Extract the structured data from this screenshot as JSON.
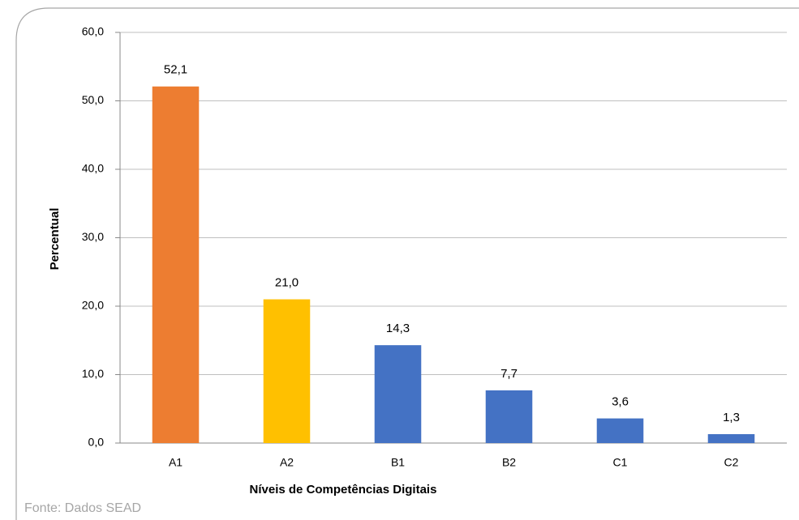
{
  "chart_data": {
    "type": "bar",
    "categories": [
      "A1",
      "A2",
      "B1",
      "B2",
      "C1",
      "C2"
    ],
    "values": [
      52.1,
      21.0,
      14.3,
      7.7,
      3.6,
      1.3
    ],
    "value_labels": [
      "52,1",
      "21,0",
      "14,3",
      "7,7",
      "3,6",
      "1,3"
    ],
    "colors": [
      "#ed7d31",
      "#ffc000",
      "#4472c4",
      "#4472c4",
      "#4472c4",
      "#4472c4"
    ],
    "ylim": [
      0,
      60
    ],
    "yticks": [
      {
        "value": 0,
        "label": "0,0"
      },
      {
        "value": 10,
        "label": "10,0"
      },
      {
        "value": 20,
        "label": "20,0"
      },
      {
        "value": 30,
        "label": "30,0"
      },
      {
        "value": 40,
        "label": "40,0"
      },
      {
        "value": 50,
        "label": "50,0"
      },
      {
        "value": 60,
        "label": "60,0"
      }
    ],
    "grid": true,
    "xlabel": "Níveis de Competências Digitais",
    "ylabel": "Percentual",
    "source": "Fonte: Dados SEAD"
  }
}
